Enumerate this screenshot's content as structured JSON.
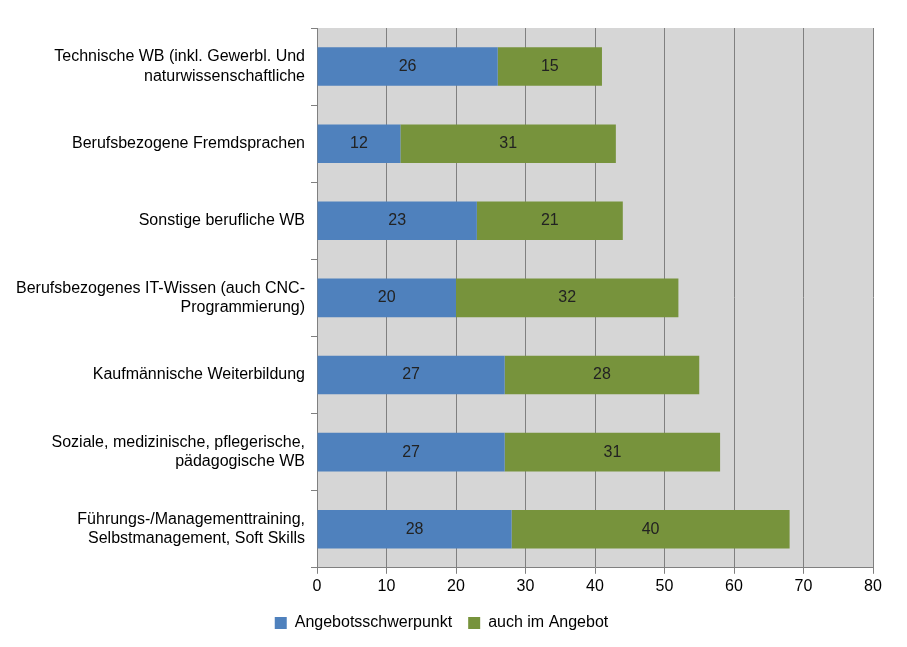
{
  "chart_data": {
    "type": "bar",
    "orientation": "horizontal",
    "stacked": true,
    "data_labels": true,
    "grid": true,
    "legend": "bottom",
    "categories": [
      [
        "Technische WB (inkl. Gewerbl. Und",
        "naturwissenschaftliche"
      ],
      [
        "Berufsbezogene Fremdsprachen"
      ],
      [
        "Sonstige berufliche WB"
      ],
      [
        "Berufsbezogenes IT-Wissen (auch CNC-",
        "Programmierung)"
      ],
      [
        "Kaufmännische Weiterbildung"
      ],
      [
        "Soziale, medizinische, pflegerische,",
        "pädagogische WB"
      ],
      [
        "Führungs-/Managementtraining,",
        "Selbstmanagement, Soft Skills"
      ]
    ],
    "series": [
      {
        "name": "Angebotsschwerpunkt",
        "color": "#4f81bd",
        "values": [
          26,
          12,
          23,
          20,
          27,
          27,
          28
        ]
      },
      {
        "name": "auch im Angebot",
        "color": "#77933c",
        "values": [
          15,
          31,
          21,
          32,
          28,
          31,
          40
        ]
      }
    ],
    "xlim": [
      0,
      80
    ],
    "xticks": [
      0,
      10,
      20,
      30,
      40,
      50,
      60,
      70,
      80
    ]
  }
}
